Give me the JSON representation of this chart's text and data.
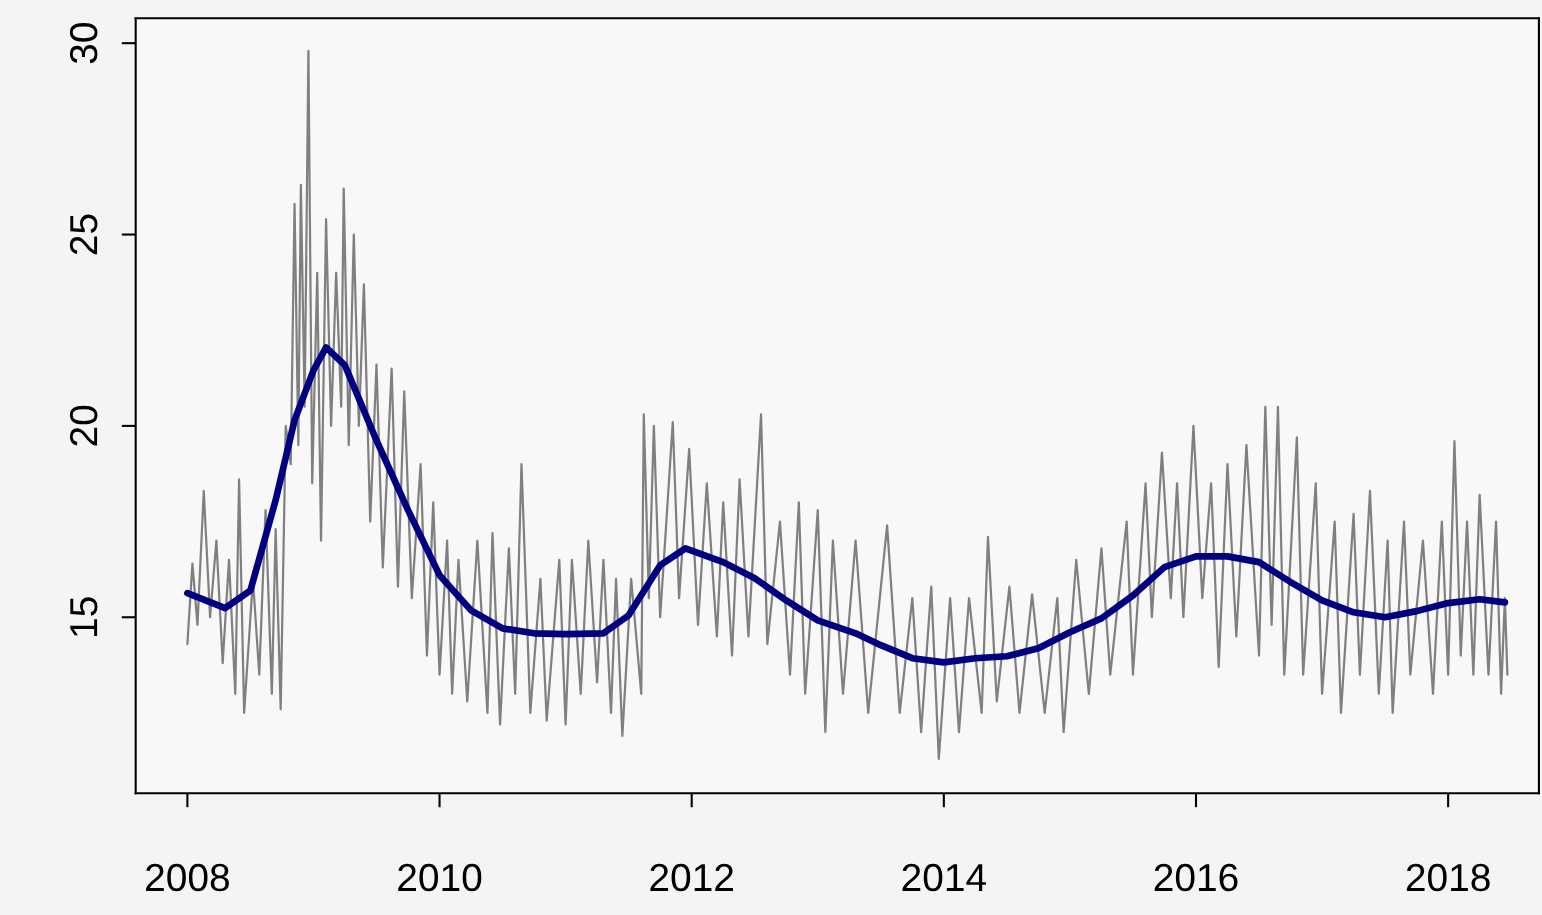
{
  "chart_data": {
    "type": "line",
    "xlim": [
      2007.59,
      2018.72
    ],
    "ylim": [
      10.4,
      30.65
    ],
    "xticks": [
      2008,
      2010,
      2012,
      2014,
      2016,
      2018
    ],
    "yticks": [
      15,
      20,
      25,
      30
    ],
    "grid": false,
    "legend": false,
    "marker": "none",
    "line_style": "solid",
    "series": [
      {
        "color": "#808080",
        "x": [
          2008.0,
          2008.04,
          2008.08,
          2008.13,
          2008.18,
          2008.23,
          2008.28,
          2008.33,
          2008.38,
          2008.41,
          2008.45,
          2008.52,
          2008.57,
          2008.62,
          2008.67,
          2008.7,
          2008.74,
          2008.78,
          2008.82,
          2008.85,
          2008.88,
          2008.9,
          2008.93,
          2008.96,
          2008.99,
          2009.03,
          2009.06,
          2009.1,
          2009.14,
          2009.18,
          2009.22,
          2009.24,
          2009.28,
          2009.32,
          2009.36,
          2009.4,
          2009.45,
          2009.5,
          2009.55,
          2009.62,
          2009.67,
          2009.72,
          2009.78,
          2009.85,
          2009.9,
          2009.95,
          2010.0,
          2010.06,
          2010.1,
          2010.15,
          2010.22,
          2010.3,
          2010.38,
          2010.42,
          2010.48,
          2010.55,
          2010.6,
          2010.65,
          2010.72,
          2010.8,
          2010.85,
          2010.95,
          2011.0,
          2011.05,
          2011.12,
          2011.18,
          2011.25,
          2011.3,
          2011.36,
          2011.4,
          2011.45,
          2011.52,
          2011.6,
          2011.62,
          2011.66,
          2011.7,
          2011.75,
          2011.85,
          2011.9,
          2011.98,
          2012.05,
          2012.12,
          2012.2,
          2012.25,
          2012.32,
          2012.38,
          2012.45,
          2012.55,
          2012.6,
          2012.7,
          2012.78,
          2012.85,
          2012.9,
          2013.0,
          2013.06,
          2013.12,
          2013.2,
          2013.3,
          2013.4,
          2013.55,
          2013.65,
          2013.75,
          2013.82,
          2013.9,
          2013.96,
          2014.05,
          2014.12,
          2014.2,
          2014.3,
          2014.35,
          2014.42,
          2014.52,
          2014.6,
          2014.7,
          2014.8,
          2014.9,
          2014.95,
          2015.05,
          2015.15,
          2015.25,
          2015.32,
          2015.45,
          2015.5,
          2015.6,
          2015.65,
          2015.73,
          2015.8,
          2015.85,
          2015.9,
          2015.98,
          2016.05,
          2016.12,
          2016.18,
          2016.25,
          2016.32,
          2016.4,
          2016.5,
          2016.55,
          2016.6,
          2016.65,
          2016.7,
          2016.8,
          2016.85,
          2016.95,
          2017.0,
          2017.1,
          2017.15,
          2017.25,
          2017.3,
          2017.38,
          2017.45,
          2017.52,
          2017.56,
          2017.65,
          2017.7,
          2017.8,
          2017.88,
          2017.95,
          2018.0,
          2018.05,
          2018.1,
          2018.15,
          2018.2,
          2018.25,
          2018.32,
          2018.38,
          2018.42,
          2018.45,
          2018.47
        ],
        "values": [
          14.3,
          16.4,
          14.8,
          18.3,
          15.0,
          17.0,
          13.8,
          16.5,
          13.0,
          18.6,
          12.5,
          16.0,
          13.5,
          17.8,
          13.0,
          17.3,
          12.6,
          20.0,
          19.0,
          25.8,
          19.5,
          26.3,
          20.5,
          29.8,
          18.5,
          24.0,
          17.0,
          25.4,
          20.0,
          24.0,
          20.5,
          26.2,
          19.5,
          25.0,
          20.0,
          23.7,
          17.5,
          21.6,
          16.3,
          21.5,
          15.8,
          20.9,
          15.5,
          19.0,
          14.0,
          18.0,
          13.5,
          17.0,
          13.0,
          16.5,
          12.8,
          17.0,
          12.5,
          17.2,
          12.2,
          16.8,
          13.0,
          19.0,
          12.5,
          16.0,
          12.3,
          16.5,
          12.2,
          16.5,
          13.0,
          17.0,
          13.3,
          16.5,
          12.5,
          16.0,
          11.9,
          16.0,
          13.0,
          20.3,
          15.5,
          20.0,
          15.0,
          20.1,
          15.5,
          19.4,
          14.8,
          18.5,
          14.5,
          18.0,
          14.0,
          18.6,
          14.5,
          20.3,
          14.3,
          17.5,
          13.5,
          18.0,
          13.0,
          17.8,
          12.0,
          17.0,
          13.0,
          17.0,
          12.5,
          17.4,
          12.5,
          15.5,
          12.0,
          15.8,
          11.3,
          15.5,
          12.0,
          15.5,
          12.5,
          17.1,
          12.8,
          15.8,
          12.5,
          15.6,
          12.5,
          15.5,
          12.0,
          16.5,
          13.0,
          16.8,
          13.5,
          17.5,
          13.5,
          18.5,
          15.0,
          19.3,
          15.5,
          18.5,
          15.0,
          20.0,
          15.5,
          18.5,
          13.7,
          19.0,
          14.5,
          19.5,
          14.0,
          20.5,
          14.8,
          20.5,
          13.5,
          19.7,
          13.5,
          18.5,
          13.0,
          17.5,
          12.5,
          17.7,
          13.5,
          18.3,
          13.0,
          17.0,
          12.5,
          17.5,
          13.5,
          17.0,
          13.0,
          17.5,
          13.5,
          19.6,
          14.0,
          17.5,
          13.5,
          18.2,
          13.5,
          17.5,
          13.0,
          15.5,
          13.5
        ]
      },
      {
        "color": "#000080",
        "x": [
          2008.0,
          2008.3,
          2008.5,
          2008.7,
          2008.85,
          2009.0,
          2009.1,
          2009.25,
          2009.5,
          2009.75,
          2010.0,
          2010.25,
          2010.5,
          2010.75,
          2011.0,
          2011.3,
          2011.5,
          2011.75,
          2011.95,
          2012.25,
          2012.5,
          2012.75,
          2013.0,
          2013.3,
          2013.5,
          2013.75,
          2014.0,
          2014.25,
          2014.5,
          2014.75,
          2015.0,
          2015.25,
          2015.5,
          2015.75,
          2016.0,
          2016.25,
          2016.5,
          2016.75,
          2017.0,
          2017.25,
          2017.5,
          2017.75,
          2018.0,
          2018.25,
          2018.45
        ],
        "values": [
          15.63,
          15.24,
          15.7,
          18.06,
          20.15,
          21.45,
          22.05,
          21.58,
          19.62,
          17.8,
          16.1,
          15.18,
          14.71,
          14.58,
          14.56,
          14.58,
          15.05,
          16.36,
          16.8,
          16.44,
          16.02,
          15.44,
          14.92,
          14.58,
          14.27,
          13.93,
          13.82,
          13.93,
          13.98,
          14.19,
          14.61,
          14.97,
          15.57,
          16.31,
          16.59,
          16.59,
          16.44,
          15.92,
          15.44,
          15.13,
          15.0,
          15.16,
          15.37,
          15.47,
          15.39
        ]
      }
    ]
  }
}
